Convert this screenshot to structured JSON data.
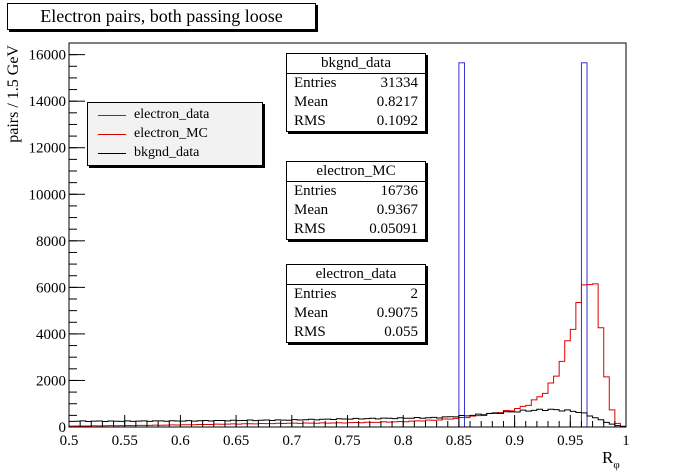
{
  "chart_data": {
    "type": "histogram",
    "title": "Electron pairs, both passing loose",
    "xlabel": "R",
    "xlabel_sub": "φ",
    "ylabel": "pairs / 1.5 GeV",
    "xlim": [
      0.5,
      1.0
    ],
    "ylim": [
      0,
      16500
    ],
    "x_ticks": [
      "0.5",
      "0.55",
      "0.6",
      "0.65",
      "0.7",
      "0.75",
      "0.8",
      "0.85",
      "0.9",
      "0.95",
      "1"
    ],
    "y_ticks": [
      "0",
      "2000",
      "4000",
      "6000",
      "8000",
      "10000",
      "12000",
      "14000",
      "16000"
    ],
    "grid": false,
    "legend_position": "top-left",
    "bins": 100,
    "series": [
      {
        "name": "electron_data",
        "color": "#3333cc",
        "bins": [
          {
            "x": [
              0.85,
              0.855
            ],
            "y": 15650
          },
          {
            "x": [
              0.96,
              0.965
            ],
            "y": 15650
          }
        ]
      },
      {
        "name": "electron_MC",
        "color": "#dd0000",
        "curve": [
          [
            0.5,
            40
          ],
          [
            0.55,
            60
          ],
          [
            0.6,
            90
          ],
          [
            0.65,
            130
          ],
          [
            0.7,
            160
          ],
          [
            0.75,
            180
          ],
          [
            0.8,
            230
          ],
          [
            0.83,
            300
          ],
          [
            0.85,
            380
          ],
          [
            0.87,
            500
          ],
          [
            0.89,
            650
          ],
          [
            0.9,
            750
          ],
          [
            0.91,
            900
          ],
          [
            0.92,
            1200
          ],
          [
            0.93,
            1600
          ],
          [
            0.935,
            2000
          ],
          [
            0.94,
            2500
          ],
          [
            0.945,
            3200
          ],
          [
            0.95,
            3900
          ],
          [
            0.955,
            4900
          ],
          [
            0.96,
            5600
          ],
          [
            0.965,
            6350
          ],
          [
            0.97,
            6500
          ],
          [
            0.975,
            5300
          ],
          [
            0.98,
            3300
          ],
          [
            0.985,
            1150
          ],
          [
            0.99,
            250
          ],
          [
            0.995,
            70
          ],
          [
            1.0,
            0
          ]
        ]
      },
      {
        "name": "bkgnd_data",
        "color": "#000000",
        "curve": [
          [
            0.5,
            250
          ],
          [
            0.55,
            250
          ],
          [
            0.6,
            260
          ],
          [
            0.65,
            280
          ],
          [
            0.7,
            300
          ],
          [
            0.75,
            350
          ],
          [
            0.8,
            380
          ],
          [
            0.83,
            400
          ],
          [
            0.85,
            460
          ],
          [
            0.87,
            540
          ],
          [
            0.89,
            620
          ],
          [
            0.91,
            700
          ],
          [
            0.93,
            750
          ],
          [
            0.95,
            700
          ],
          [
            0.96,
            620
          ],
          [
            0.97,
            450
          ],
          [
            0.98,
            250
          ],
          [
            0.99,
            80
          ],
          [
            1.0,
            0
          ]
        ]
      }
    ],
    "legend": [
      {
        "label": "electron_data",
        "color": "#3333cc"
      },
      {
        "label": "electron_MC",
        "color": "#dd0000"
      },
      {
        "label": "bkgnd_data",
        "color": "#000000"
      }
    ],
    "statboxes": [
      {
        "title": "bkgnd_data",
        "rows": [
          [
            "Entries",
            "31334"
          ],
          [
            "Mean",
            "0.8217"
          ],
          [
            "RMS",
            "0.1092"
          ]
        ]
      },
      {
        "title": "electron_MC",
        "rows": [
          [
            "Entries",
            "16736"
          ],
          [
            "Mean",
            "0.9367"
          ],
          [
            "RMS",
            "0.05091"
          ]
        ]
      },
      {
        "title": "electron_data",
        "rows": [
          [
            "Entries",
            "2"
          ],
          [
            "Mean",
            "0.9075"
          ],
          [
            "RMS",
            "0.055"
          ]
        ]
      }
    ]
  }
}
